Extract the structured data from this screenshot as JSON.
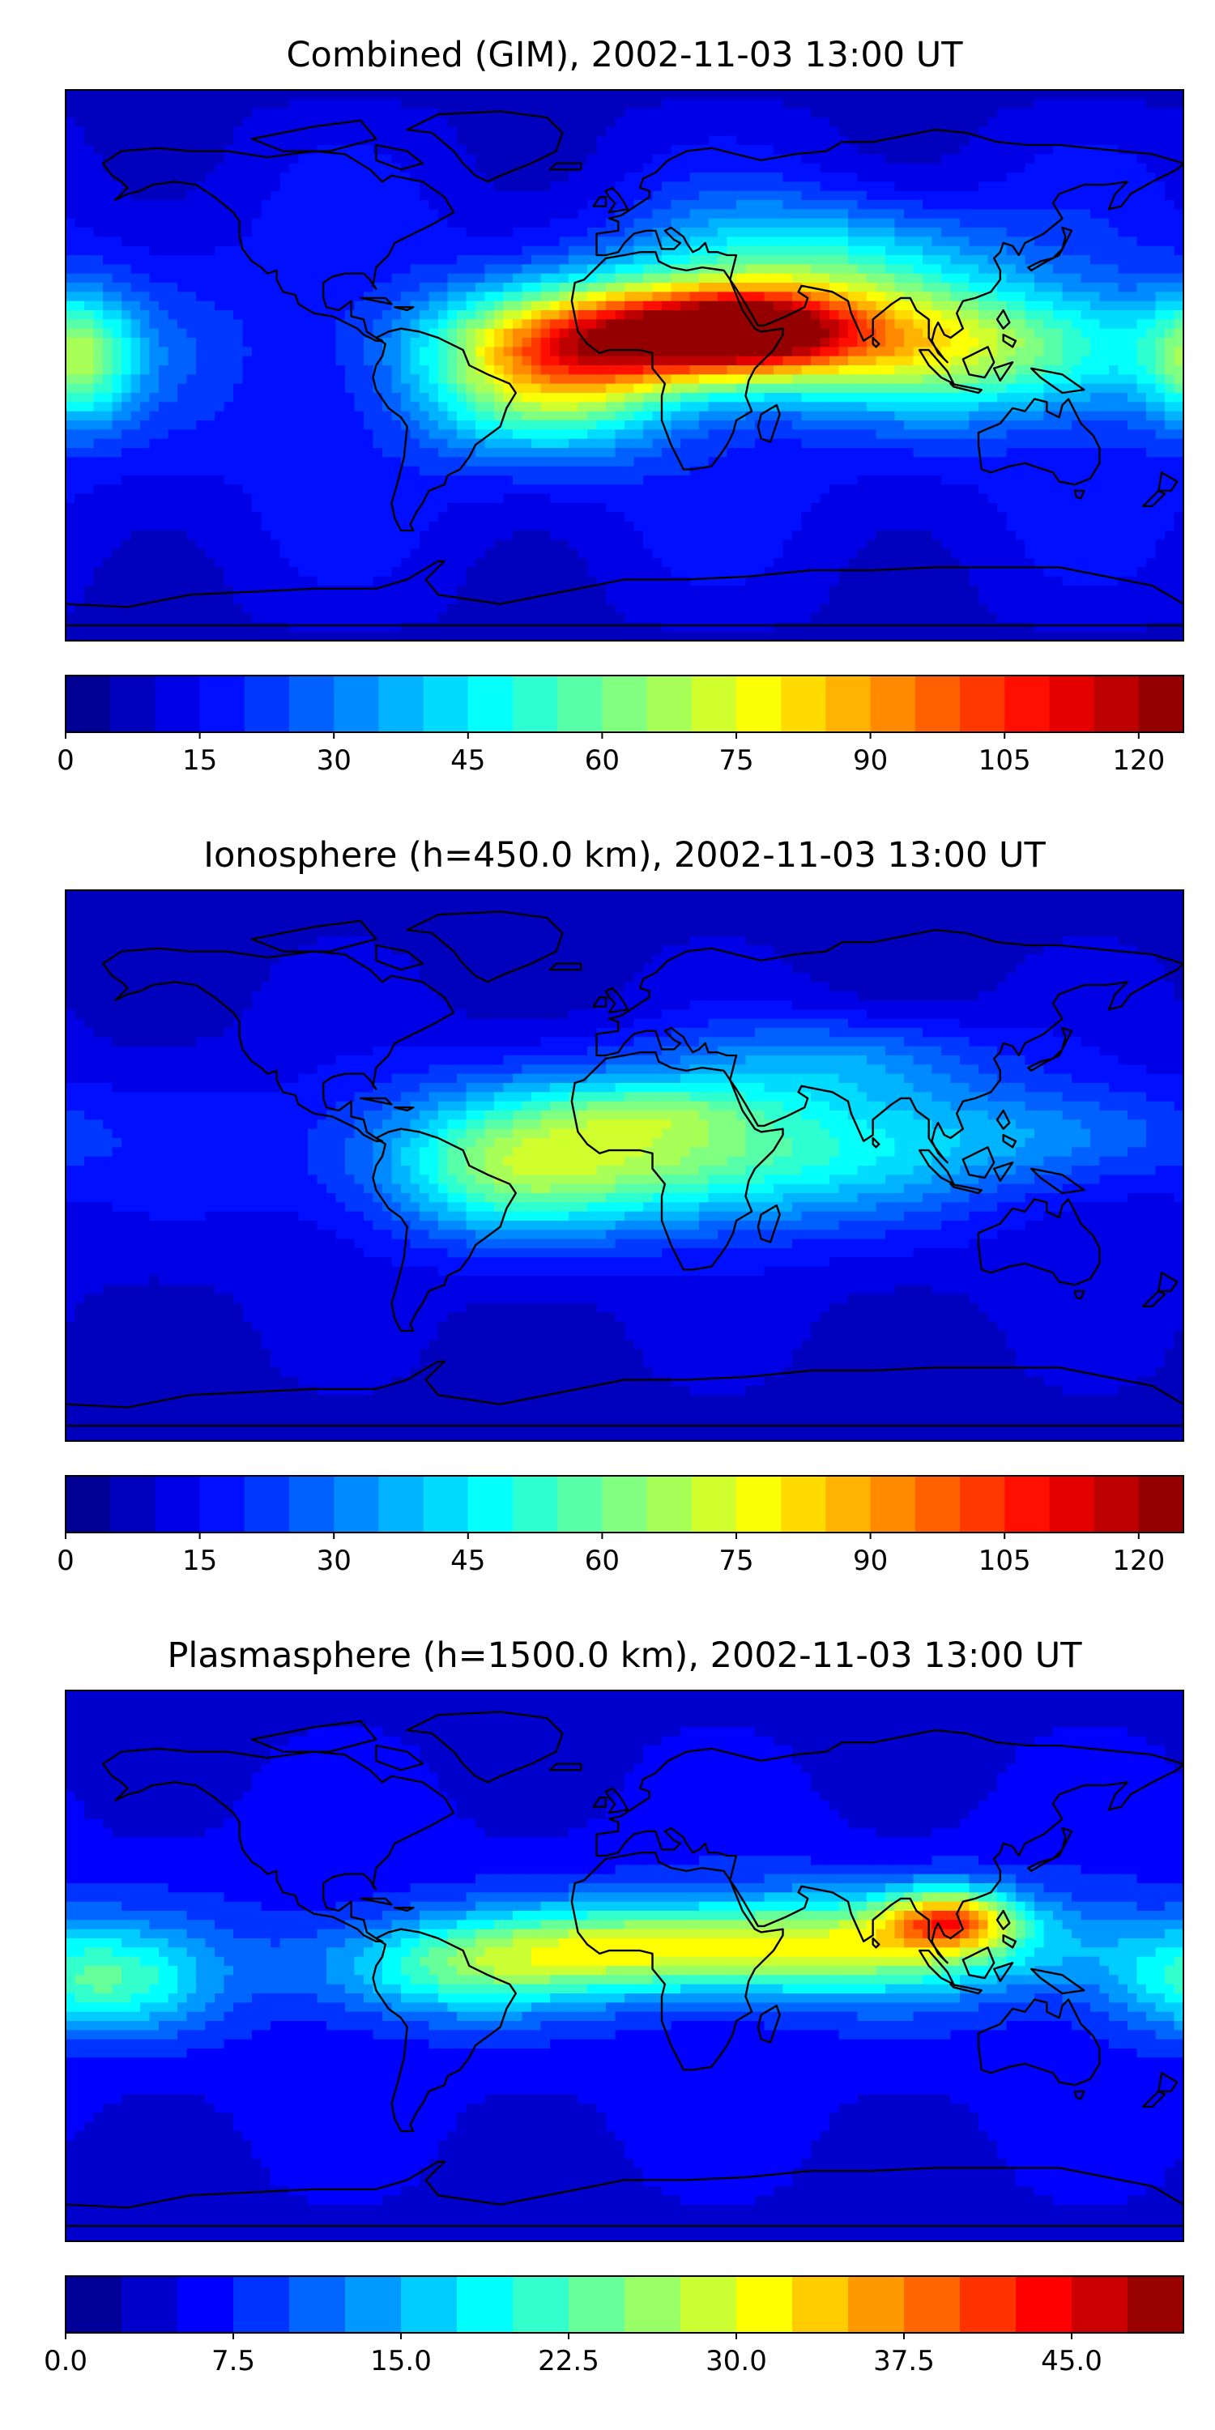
{
  "panels": [
    {
      "title": "Combined (GIM), 2002-11-03 13:00 UT",
      "colorbar": {
        "vmin": 0,
        "vmax": 125,
        "levels": 25,
        "tick_values": [
          0,
          15,
          30,
          45,
          60,
          75,
          90,
          105,
          120
        ],
        "tick_labels": [
          "0",
          "15",
          "30",
          "45",
          "60",
          "75",
          "90",
          "105",
          "120"
        ]
      },
      "field_peak_value": 120,
      "blobs": [
        {
          "lon": 20,
          "lat": 10,
          "amp": 0.82,
          "sx": 45,
          "sy": 12
        },
        {
          "lon": 40,
          "lat": 12,
          "amp": 0.25,
          "sx": 20,
          "sy": 8
        },
        {
          "lon": -25,
          "lat": -8,
          "amp": 0.35,
          "sx": 30,
          "sy": 15
        },
        {
          "lon": 120,
          "lat": 5,
          "amp": 0.35,
          "sx": 45,
          "sy": 15
        },
        {
          "lon": 60,
          "lat": 35,
          "amp": 0.25,
          "sx": 40,
          "sy": 14
        },
        {
          "lon": -175,
          "lat": 2,
          "amp": 0.28,
          "sx": 12,
          "sy": 15
        }
      ]
    },
    {
      "title": "Ionosphere  (h=450.0 km), 2002-11-03 13:00 UT",
      "colorbar": {
        "vmin": 0,
        "vmax": 125,
        "levels": 25,
        "tick_values": [
          0,
          15,
          30,
          45,
          60,
          75,
          90,
          105,
          120
        ],
        "tick_labels": [
          "0",
          "15",
          "30",
          "45",
          "60",
          "75",
          "90",
          "105",
          "120"
        ]
      },
      "field_peak_value": 85,
      "blobs": [
        {
          "lon": 10,
          "lat": 5,
          "amp": 0.62,
          "sx": 60,
          "sy": 17
        },
        {
          "lon": 10,
          "lat": 18,
          "amp": 0.15,
          "sx": 25,
          "sy": 6
        },
        {
          "lon": -40,
          "lat": -5,
          "amp": 0.2,
          "sx": 25,
          "sy": 15
        },
        {
          "lon": 70,
          "lat": 35,
          "amp": 0.2,
          "sx": 35,
          "sy": 10
        },
        {
          "lon": 140,
          "lat": 10,
          "amp": 0.2,
          "sx": 35,
          "sy": 12
        }
      ]
    },
    {
      "title": "Plasmasphere (h=1500.0 km), 2002-11-03 13:00 UT",
      "colorbar": {
        "vmin": 0,
        "vmax": 50,
        "levels": 20,
        "tick_values": [
          0,
          7.5,
          15,
          22.5,
          30,
          37.5,
          45
        ],
        "tick_labels": [
          "0.0",
          "7.5",
          "15.0",
          "22.5",
          "30.0",
          "37.5",
          "45.0"
        ]
      },
      "field_peak_value": 46,
      "blobs": [
        {
          "lon": 105,
          "lat": 15,
          "amp": 0.45,
          "sx": 14,
          "sy": 7
        },
        {
          "lon": 80,
          "lat": 8,
          "amp": 0.32,
          "sx": 55,
          "sy": 12
        },
        {
          "lon": 0,
          "lat": 5,
          "amp": 0.4,
          "sx": 55,
          "sy": 10
        },
        {
          "lon": -170,
          "lat": -5,
          "amp": 0.3,
          "sx": 25,
          "sy": 12
        },
        {
          "lon": -60,
          "lat": -5,
          "amp": 0.18,
          "sx": 30,
          "sy": 10
        }
      ]
    }
  ]
}
